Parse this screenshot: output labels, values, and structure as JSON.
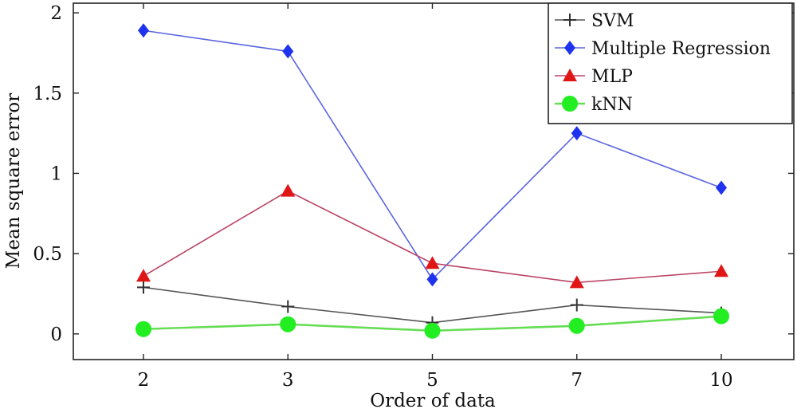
{
  "chart_data": {
    "type": "line",
    "xlabel": "Order of data",
    "ylabel": "Mean square error",
    "categories": [
      "2",
      "3",
      "5",
      "7",
      "10"
    ],
    "ylim": [
      -0.16,
      2.06
    ],
    "yticks": [
      0,
      0.5,
      1,
      1.5,
      2
    ],
    "ytick_labels": [
      "0",
      "0.5",
      "1",
      "1.5",
      "2"
    ],
    "grid": false,
    "legend_position": "top-right",
    "series": [
      {
        "name": "SVM",
        "values": [
          0.29,
          0.17,
          0.07,
          0.18,
          0.13
        ],
        "color": "#333333",
        "line_color": "#555555",
        "marker": "plus"
      },
      {
        "name": "Multiple Regression",
        "values": [
          1.89,
          1.76,
          0.34,
          1.25,
          0.91
        ],
        "color": "#1f33ee",
        "line_color": "#5b66e0",
        "marker": "diamond"
      },
      {
        "name": "MLP",
        "values": [
          0.36,
          0.89,
          0.44,
          0.32,
          0.39
        ],
        "color": "#e01515",
        "line_color": "#bb4466",
        "marker": "triangle"
      },
      {
        "name": "kNN",
        "values": [
          0.03,
          0.06,
          0.02,
          0.05,
          0.11
        ],
        "color": "#22ee22",
        "line_color": "#66dd55",
        "marker": "circle"
      }
    ]
  }
}
